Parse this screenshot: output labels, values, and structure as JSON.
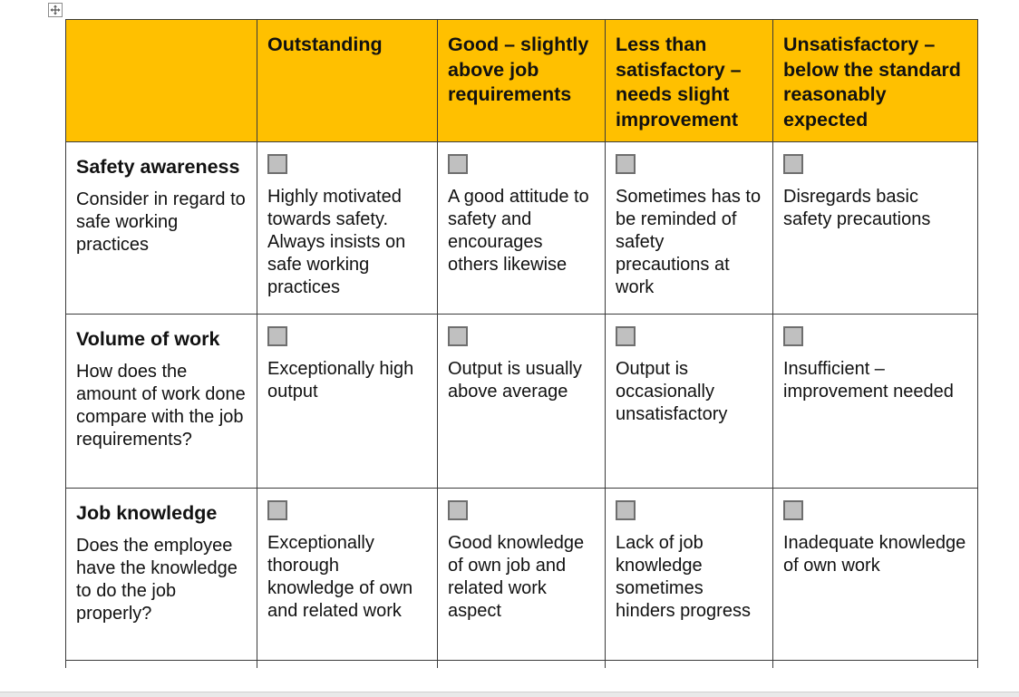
{
  "headers": [
    "",
    "Outstanding",
    "Good – slightly above job requirements",
    "Less than satisfactory – needs slight improvement",
    "Unsatisfactory – below the standard reasonably expected"
  ],
  "criteria": [
    {
      "title": "Safety awareness",
      "description": "Consider in regard to safe working practices",
      "ratings": [
        "Highly motivated towards safety. Always insists on safe working practices",
        "A good attitude to safety and encourages others likewise",
        "Sometimes has to be reminded of safety precautions at work",
        "Disregards basic safety precautions"
      ]
    },
    {
      "title": "Volume of work",
      "description": "How does the amount of work done compare with the job requirements?",
      "ratings": [
        "Exceptionally high output",
        "Output is usually above average",
        "Output is occasionally unsatisfactory",
        "Insufficient – improvement needed"
      ]
    },
    {
      "title": "Job knowledge",
      "description": "Does the employee have the knowledge to do the job properly?",
      "ratings": [
        "Exceptionally thorough knowledge of own and related work",
        "Good knowledge of own job and related work aspect",
        "Lack of job knowledge sometimes hinders progress",
        "Inadequate knowledge of own work"
      ]
    }
  ],
  "colors": {
    "header_bg": "#ffc000",
    "checkbox_fill": "#c0c0c0",
    "grid_line": "#3b3b3b"
  },
  "icons": {
    "table_handle": "move-arrows-icon",
    "checkbox": "checkbox-icon"
  }
}
